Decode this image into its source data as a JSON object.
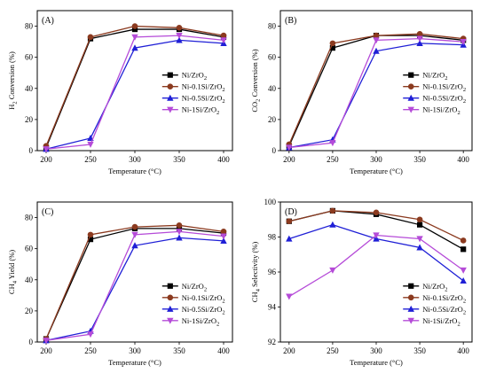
{
  "chart_data": [
    {
      "type": "line",
      "panel_label": "(A)",
      "xlabel": "Temperature (°C)",
      "ylabel_main": "H",
      "ylabel_sub": "2",
      "ylabel_rest": " Conversion (%)",
      "x": [
        200,
        250,
        300,
        350,
        400
      ],
      "xlim": [
        190,
        410
      ],
      "ylim": [
        0,
        90
      ],
      "yticks": [
        0,
        20,
        40,
        60,
        80
      ],
      "legend_position": "center-right",
      "series": [
        {
          "label_base": "Ni/ZrO",
          "label_sub": "2",
          "color": "#000000",
          "marker": "square",
          "values": [
            2,
            72,
            78,
            78,
            73
          ]
        },
        {
          "label_base": "Ni-0.1Si/ZrO",
          "label_sub": "2",
          "color": "#8b3a1f",
          "marker": "circle",
          "values": [
            3,
            73,
            80,
            79,
            74
          ]
        },
        {
          "label_base": "Ni-0.5Si/ZrO",
          "label_sub": "2",
          "color": "#1f1fd6",
          "marker": "triangle-up",
          "values": [
            1,
            8,
            66,
            71,
            69
          ]
        },
        {
          "label_base": "Ni-1Si/ZrO",
          "label_sub": "2",
          "color": "#b54bd8",
          "marker": "triangle-down",
          "values": [
            1,
            4,
            73,
            74,
            71
          ]
        }
      ]
    },
    {
      "type": "line",
      "panel_label": "(B)",
      "xlabel": "Temperature (°C)",
      "ylabel_main": "CO",
      "ylabel_sub": "2",
      "ylabel_rest": " Conversion (%)",
      "x": [
        200,
        250,
        300,
        350,
        400
      ],
      "xlim": [
        190,
        410
      ],
      "ylim": [
        0,
        90
      ],
      "yticks": [
        0,
        20,
        40,
        60,
        80
      ],
      "legend_position": "center-right",
      "series": [
        {
          "label_base": "Ni/ZrO",
          "label_sub": "2",
          "color": "#000000",
          "marker": "square",
          "values": [
            3,
            66,
            74,
            74,
            71
          ]
        },
        {
          "label_base": "Ni-0.1Si/ZrO",
          "label_sub": "2",
          "color": "#8b3a1f",
          "marker": "circle",
          "values": [
            4,
            69,
            74,
            75,
            72
          ]
        },
        {
          "label_base": "Ni-0.5Si/ZrO",
          "label_sub": "2",
          "color": "#1f1fd6",
          "marker": "triangle-up",
          "values": [
            2,
            7,
            64,
            69,
            68
          ]
        },
        {
          "label_base": "Ni-1Si/ZrO",
          "label_sub": "2",
          "color": "#b54bd8",
          "marker": "triangle-down",
          "values": [
            2,
            5,
            71,
            72,
            70
          ]
        }
      ]
    },
    {
      "type": "line",
      "panel_label": "(C)",
      "xlabel": "Temperature (°C)",
      "ylabel_main": "CH",
      "ylabel_sub": "4",
      "ylabel_rest": " Yield (%)",
      "x": [
        200,
        250,
        300,
        350,
        400
      ],
      "xlim": [
        190,
        410
      ],
      "ylim": [
        0,
        90
      ],
      "yticks": [
        0,
        20,
        40,
        60,
        80
      ],
      "legend_position": "bottom-right",
      "series": [
        {
          "label_base": "Ni/ZrO",
          "label_sub": "2",
          "color": "#000000",
          "marker": "square",
          "values": [
            2,
            66,
            73,
            73,
            70
          ]
        },
        {
          "label_base": "Ni-0.1Si/ZrO",
          "label_sub": "2",
          "color": "#8b3a1f",
          "marker": "circle",
          "values": [
            2,
            69,
            74,
            75,
            71
          ]
        },
        {
          "label_base": "Ni-0.5Si/ZrO",
          "label_sub": "2",
          "color": "#1f1fd6",
          "marker": "triangle-up",
          "values": [
            1,
            7,
            62,
            67,
            65
          ]
        },
        {
          "label_base": "Ni-1Si/ZrO",
          "label_sub": "2",
          "color": "#b54bd8",
          "marker": "triangle-down",
          "values": [
            1,
            5,
            69,
            71,
            68
          ]
        }
      ]
    },
    {
      "type": "line",
      "panel_label": "(D)",
      "xlabel": "Temperature (°C)",
      "ylabel_main": "CH",
      "ylabel_sub": "4",
      "ylabel_rest": " Selectivity (%)",
      "x": [
        200,
        250,
        300,
        350,
        400
      ],
      "xlim": [
        190,
        410
      ],
      "ylim": [
        92,
        100
      ],
      "yticks": [
        92,
        94,
        96,
        98,
        100
      ],
      "legend_position": "bottom-right",
      "series": [
        {
          "label_base": "Ni/ZrO",
          "label_sub": "2",
          "color": "#000000",
          "marker": "square",
          "values": [
            98.9,
            99.5,
            99.3,
            98.7,
            97.3
          ]
        },
        {
          "label_base": "Ni-0.1Si/ZrO",
          "label_sub": "2",
          "color": "#8b3a1f",
          "marker": "circle",
          "values": [
            98.9,
            99.5,
            99.4,
            99.0,
            97.8
          ]
        },
        {
          "label_base": "Ni-0.5Si/ZrO",
          "label_sub": "2",
          "color": "#1f1fd6",
          "marker": "triangle-up",
          "values": [
            97.9,
            98.7,
            97.9,
            97.4,
            95.5
          ]
        },
        {
          "label_base": "Ni-1Si/ZrO",
          "label_sub": "2",
          "color": "#b54bd8",
          "marker": "triangle-down",
          "values": [
            94.6,
            96.1,
            98.1,
            97.9,
            96.1
          ]
        }
      ]
    }
  ]
}
